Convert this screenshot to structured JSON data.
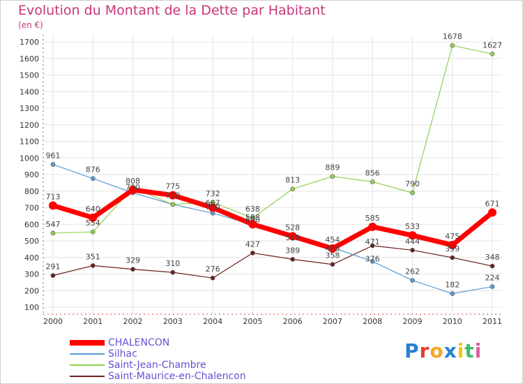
{
  "chart_data": {
    "type": "line",
    "title": "Evolution du Montant de la Dette par Habitant",
    "subtitle": "(en €)",
    "xlabel": "",
    "ylabel": "",
    "x": [
      "2000",
      "2001",
      "2002",
      "2003",
      "2004",
      "2005",
      "2006",
      "2007",
      "2008",
      "2009",
      "2010",
      "2011"
    ],
    "ylim": [
      100,
      1700
    ],
    "yticks": [
      100,
      200,
      300,
      400,
      500,
      600,
      700,
      800,
      900,
      1000,
      1100,
      1200,
      1300,
      1400,
      1500,
      1600,
      1700
    ],
    "grid": true,
    "legend_position": "bottom-left",
    "series": [
      {
        "name": "CHALENCON",
        "color": "#ff0000",
        "values": [
          713,
          640,
          808,
          775,
          700,
          600,
          528,
          454,
          585,
          533,
          475,
          671
        ]
      },
      {
        "name": "Silhac",
        "color": "#5b9bd5",
        "values": [
          961,
          876,
          790,
          720,
          667,
          598,
          519,
          460,
          376,
          262,
          182,
          224
        ]
      },
      {
        "name": "Saint-Jean-Chambre",
        "color": "#8fd14f",
        "values": [
          547,
          554,
          820,
          720,
          732,
          638,
          813,
          889,
          856,
          790,
          1678,
          1627
        ]
      },
      {
        "name": "Saint-Maurice-en-Chalencon",
        "color": "#6b1f1f",
        "values": [
          291,
          351,
          329,
          310,
          276,
          427,
          389,
          358,
          471,
          444,
          399,
          348
        ]
      }
    ],
    "labels": {
      "CHALENCON": [
        "713",
        "640",
        "808",
        "775",
        "",
        "",
        "528",
        "454",
        "585",
        "533",
        "475",
        "671"
      ],
      "Silhac": [
        "961",
        "876",
        "",
        "",
        "",
        "",
        "",
        "",
        "",
        "262",
        "182",
        "224"
      ],
      "Saint-Jean-Chambre": [
        "547",
        "554",
        "",
        "",
        "732",
        "638",
        "813",
        "889",
        "856",
        "790",
        "1678",
        "1627"
      ],
      "Saint-Maurice-en-Chalencon": [
        "291",
        "351",
        "329",
        "310",
        "276",
        "427",
        "389",
        "358",
        "",
        "444",
        "399",
        "348"
      ],
      "overlap": [
        {
          "x": "2002",
          "y": 808,
          "text": "790"
        },
        {
          "x": "2003",
          "y": 760,
          "text": "720"
        },
        {
          "x": "2004",
          "y": 712,
          "text": "667"
        },
        {
          "x": "2004",
          "y": 690,
          "text": "700"
        },
        {
          "x": "2005",
          "y": 626,
          "text": "598"
        },
        {
          "x": "2005",
          "y": 612,
          "text": "600"
        },
        {
          "x": "2006",
          "y": 505,
          "text": "519"
        },
        {
          "x": "2007",
          "y": 440,
          "text": "460"
        },
        {
          "x": "2008",
          "y": 376,
          "text": "376"
        },
        {
          "x": "2008",
          "y": 480,
          "text": "471"
        }
      ]
    }
  },
  "logo": {
    "text": "Proxiti",
    "colors": [
      "#2a7fd4",
      "#e63b2e",
      "#f5a623",
      "#2a7fd4",
      "#f5c518",
      "#3fbf6a",
      "#e05ea0"
    ]
  }
}
